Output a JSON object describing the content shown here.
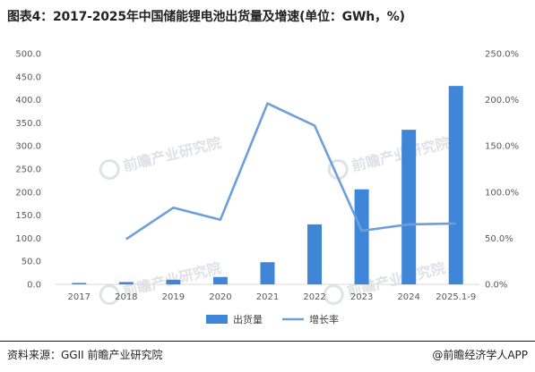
{
  "header": {
    "title": "图表4：2017-2025年中国储能锂电池出货量及增速(单位：GWh，%)"
  },
  "watermark": {
    "text": "前瞻产业研究院",
    "color": "#d9dde3"
  },
  "footer": {
    "source": "资料来源：GGII 前瞻产业研究院",
    "brand": "@前瞻经济学人APP"
  },
  "colors": {
    "bar": "#3f86d8",
    "line": "#6d9fdb",
    "axis": "#d9d9d9"
  },
  "chart_data": {
    "type": "bar",
    "title": "图表4：2017-2025年中国储能锂电池出货量及增速(单位：GWh，%)",
    "categories": [
      "2017",
      "2018",
      "2019",
      "2020",
      "2021",
      "2022",
      "2023",
      "2024",
      "2025.1-9"
    ],
    "series": [
      {
        "name": "出货量",
        "type": "bar",
        "axis": "left",
        "values": [
          3,
          5,
          10,
          16,
          48,
          130,
          206,
          335,
          430
        ]
      },
      {
        "name": "增长率",
        "type": "line",
        "axis": "right",
        "values": [
          null,
          49,
          83,
          70,
          196,
          172,
          58,
          65,
          66
        ]
      }
    ],
    "yleft": {
      "lim": [
        0,
        500
      ],
      "ticks": [
        "0.0",
        "50.0",
        "100.0",
        "150.0",
        "200.0",
        "250.0",
        "300.0",
        "350.0",
        "400.0",
        "450.0",
        "500.0"
      ]
    },
    "yright": {
      "lim": [
        0,
        250
      ],
      "ticks": [
        "0.0%",
        "50.0%",
        "100.0%",
        "150.0%",
        "200.0%",
        "250.0%"
      ]
    },
    "legend_position": "bottom",
    "grid": false
  }
}
